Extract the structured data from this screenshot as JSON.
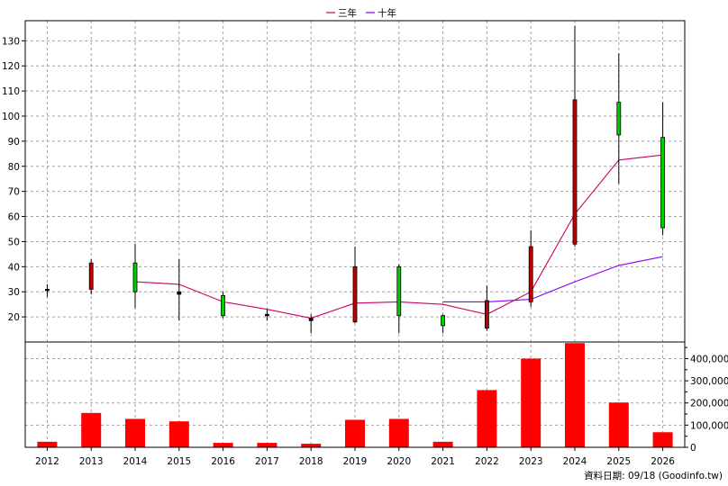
{
  "chart_data": {
    "type": "candlestick_with_volume",
    "legend": {
      "position": "top-center",
      "items": [
        {
          "label": "三年",
          "color": "#cc0066"
        },
        {
          "label": "十年",
          "color": "#8800ff"
        }
      ]
    },
    "categories": [
      "2012",
      "2013",
      "2014",
      "2015",
      "2016",
      "2017",
      "2018",
      "2019",
      "2020",
      "2021",
      "2022",
      "2023",
      "2024",
      "2025",
      "2026"
    ],
    "price_axis": {
      "side": "left",
      "ylim": [
        10,
        138
      ],
      "ticks": [
        20,
        30,
        40,
        50,
        60,
        70,
        80,
        90,
        100,
        110,
        120,
        130
      ]
    },
    "volume_axis": {
      "side": "right",
      "ylim": [
        0,
        475000
      ],
      "ticks": [
        0,
        100000,
        200000,
        300000,
        400000
      ],
      "tick_labels": [
        "0",
        "100,000",
        "200,000",
        "300,000",
        "400,000"
      ]
    },
    "candles": [
      {
        "year": "2012",
        "open": 31,
        "close": 30.5,
        "high": 33,
        "low": 28,
        "color": "#000000"
      },
      {
        "year": "2013",
        "open": 31,
        "close": 41.5,
        "high": 43,
        "low": 29,
        "color": "#c00000"
      },
      {
        "year": "2014",
        "open": 41.5,
        "close": 30,
        "high": 49,
        "low": 23.5,
        "color": "#00cc00"
      },
      {
        "year": "2015",
        "open": 29,
        "close": 30,
        "high": 43,
        "low": 18.5,
        "color": "#000000"
      },
      {
        "year": "2016",
        "open": 28.5,
        "close": 20.5,
        "high": 30,
        "low": 19.5,
        "color": "#00cc00"
      },
      {
        "year": "2017",
        "open": 21,
        "close": 20.5,
        "high": 23,
        "low": 18.5,
        "color": "#000000"
      },
      {
        "year": "2018",
        "open": 19.5,
        "close": 18.5,
        "high": 21,
        "low": 13.5,
        "color": "#000000"
      },
      {
        "year": "2019",
        "open": 18,
        "close": 40,
        "high": 48,
        "low": 17.5,
        "color": "#c00000"
      },
      {
        "year": "2020",
        "open": 40,
        "close": 20.5,
        "high": 41,
        "low": 13.5,
        "color": "#00cc00"
      },
      {
        "year": "2021",
        "open": 20.5,
        "close": 16.5,
        "high": 21,
        "low": 13.5,
        "color": "#00cc00"
      },
      {
        "year": "2022",
        "open": 15.5,
        "close": 26.5,
        "high": 32.5,
        "low": 14.5,
        "color": "#c00000"
      },
      {
        "year": "2023",
        "open": 26,
        "close": 48,
        "high": 54.5,
        "low": 24,
        "color": "#c00000"
      },
      {
        "year": "2024",
        "open": 49,
        "close": 106.5,
        "high": 136,
        "low": 48,
        "color": "#c00000"
      },
      {
        "year": "2025",
        "open": 105.5,
        "close": 92.5,
        "high": 125,
        "low": 73,
        "color": "#00cc00"
      },
      {
        "year": "2026",
        "open": 91.5,
        "close": 55.5,
        "high": 105.5,
        "low": 52.5,
        "color": "#00cc00"
      }
    ],
    "series": [
      {
        "name": "三年",
        "color": "#cc0066",
        "x": [
          "2014",
          "2015",
          "2016",
          "2017",
          "2018",
          "2019",
          "2020",
          "2021",
          "2022",
          "2023",
          "2024",
          "2025",
          "2026"
        ],
        "values": [
          34,
          33,
          26,
          23,
          19.5,
          25.5,
          26,
          25,
          21,
          30,
          61,
          82.5,
          84.5
        ]
      },
      {
        "name": "十年",
        "color": "#8800ff",
        "x": [
          "2021",
          "2022",
          "2023",
          "2024",
          "2025",
          "2026"
        ],
        "values": [
          26,
          26,
          27,
          34,
          40.5,
          44
        ]
      }
    ],
    "volume": {
      "color": "#ff0000",
      "values": [
        25000,
        155000,
        128000,
        117000,
        20000,
        20000,
        16000,
        124000,
        128000,
        25000,
        258000,
        400000,
        470000,
        202000,
        68000
      ]
    }
  },
  "source_note": "資料日期: 09/18 (Goodinfo.tw)"
}
